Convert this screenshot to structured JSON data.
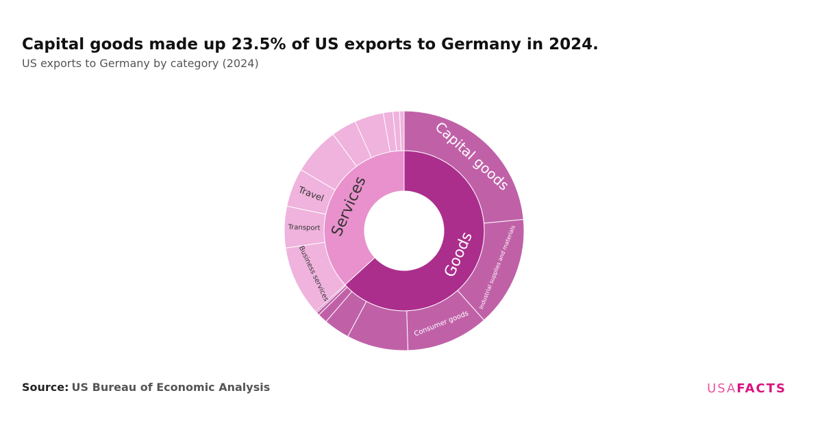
{
  "chart_data": {
    "type": "sunburst",
    "title": "Capital goods made up 23.5% of US exports to Germany in 2024.",
    "subtitle": "US exports to Germany by category (2024)",
    "source_label": "Source:",
    "source": "US Bureau of Economic Analysis",
    "logo": [
      "USA",
      "FACTS"
    ],
    "groups": [
      {
        "name": "Goods",
        "value": 63.2,
        "color": "#ab2e8c",
        "child_color": "#c061a8",
        "label_color": "#ffffff",
        "children": [
          {
            "name": "Capital goods",
            "value": 23.5
          },
          {
            "name": "Industrial supplies and materials",
            "value": 14.9
          },
          {
            "name": "Consumer goods",
            "value": 11.1
          },
          {
            "name": null,
            "value": 8.3
          },
          {
            "name": null,
            "value": 3.5
          },
          {
            "name": null,
            "value": 1.3
          },
          {
            "name": null,
            "value": 0.4
          },
          {
            "name": null,
            "value": 0.2
          }
        ]
      },
      {
        "name": "Services",
        "value": 36.8,
        "color": "#e891cc",
        "child_color": "#efb3dd",
        "label_color": "#333333",
        "children": [
          {
            "name": "Business services",
            "value": 9.5
          },
          {
            "name": "Transport",
            "value": 5.6
          },
          {
            "name": "Travel",
            "value": 5.2
          },
          {
            "name": null,
            "value": 6.4
          },
          {
            "name": null,
            "value": 3.4
          },
          {
            "name": null,
            "value": 3.9
          },
          {
            "name": null,
            "value": 1.3
          },
          {
            "name": null,
            "value": 0.9
          },
          {
            "name": null,
            "value": 0.6
          }
        ]
      }
    ]
  }
}
